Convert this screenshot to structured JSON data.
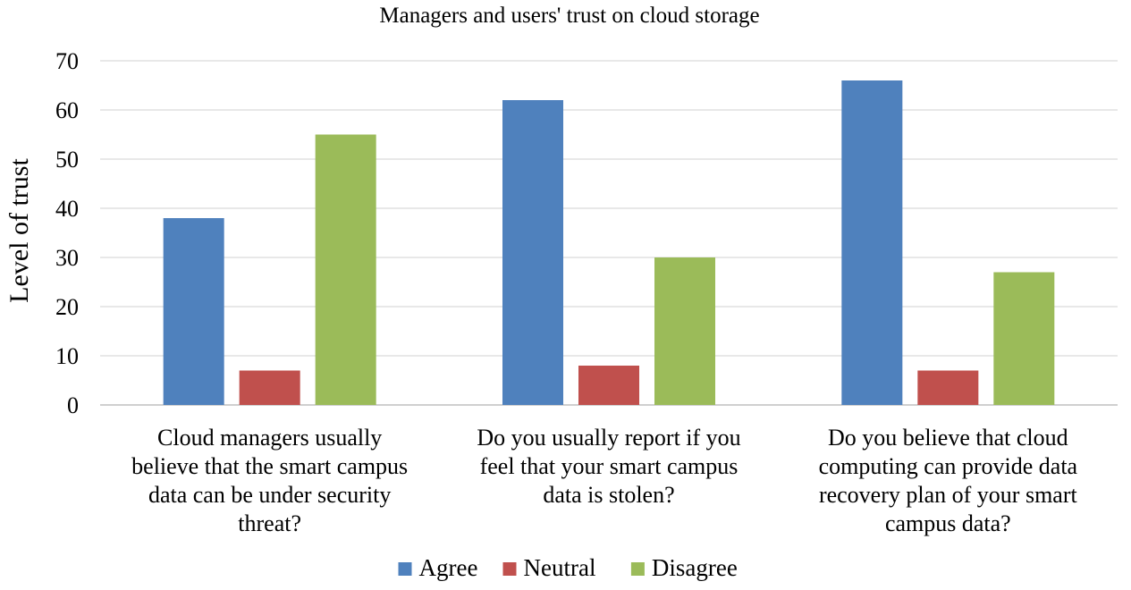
{
  "chart_data": {
    "type": "bar",
    "title": "Managers and users' trust on cloud storage",
    "xlabel": "",
    "ylabel": "Level of trust",
    "ylim": [
      0,
      70
    ],
    "yticks": [
      0,
      10,
      20,
      30,
      40,
      50,
      60,
      70
    ],
    "grid": true,
    "legend_position": "bottom",
    "categories": [
      [
        "Cloud managers usually",
        "believe that the smart campus",
        "data can be under security",
        "threat?"
      ],
      [
        "Do you usually report if you",
        "feel that your smart campus",
        "data is stolen?"
      ],
      [
        "Do you believe that cloud",
        "computing can provide data",
        "recovery plan of your smart",
        "campus data?"
      ]
    ],
    "series": [
      {
        "name": "Agree",
        "color": "#4f81bd",
        "values": [
          38,
          62,
          66
        ]
      },
      {
        "name": "Neutral",
        "color": "#c0504d",
        "values": [
          7,
          8,
          7
        ]
      },
      {
        "name": "Disagree",
        "color": "#9bbb59",
        "values": [
          55,
          30,
          27
        ]
      }
    ]
  }
}
